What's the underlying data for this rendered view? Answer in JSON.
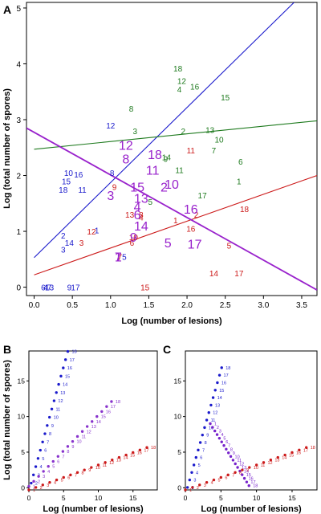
{
  "chart_data": [
    {
      "panel": "A",
      "type": "scatter",
      "xlabel": "Log (number of lesions)",
      "ylabel": "Log (total number of spores)",
      "xlim": [
        -0.1,
        3.7
      ],
      "ylim": [
        -0.15,
        5.1
      ],
      "xticks": [
        "0.0",
        "0.5",
        "1.0",
        "1.5",
        "2.0",
        "2.5",
        "3.0",
        "3.5"
      ],
      "yticks": [
        "0",
        "1",
        "2",
        "3",
        "4",
        "5"
      ],
      "series": [
        {
          "color": "#1a1acc",
          "labels": [
            "1",
            "2",
            "3",
            "4",
            "5",
            "6",
            "7",
            "8",
            "9",
            "10",
            "11",
            "12",
            "13",
            "14",
            "15",
            "16",
            "17",
            "18"
          ],
          "points": [
            [
              0.82,
              1.02
            ],
            [
              0.38,
              0.93
            ],
            [
              0.38,
              0.68
            ],
            [
              0.15,
              0.0
            ],
            [
              1.18,
              0.55
            ],
            [
              0.12,
              0.0
            ],
            [
              0.2,
              0.0
            ],
            [
              1.02,
              2.05
            ],
            [
              0.46,
              0.0
            ],
            [
              0.45,
              2.05
            ],
            [
              0.63,
              1.75
            ],
            [
              1.0,
              2.9
            ],
            [
              0.2,
              0.0
            ],
            [
              0.46,
              0.8
            ],
            [
              0.42,
              1.9
            ],
            [
              0.58,
              2.02
            ],
            [
              0.54,
              0.0
            ],
            [
              0.38,
              1.75
            ]
          ],
          "fit": [
            [
              0.0,
              0.53
            ],
            [
              3.4,
              5.1
            ]
          ]
        },
        {
          "color": "#1e7a1e",
          "labels": [
            "1",
            "2",
            "3",
            "4",
            "5",
            "6",
            "7",
            "8",
            "9",
            "10",
            "11",
            "12",
            "13",
            "14",
            "15",
            "16",
            "17",
            "18"
          ],
          "points": [
            [
              2.68,
              1.9
            ],
            [
              1.95,
              2.8
            ],
            [
              1.32,
              2.8
            ],
            [
              1.9,
              3.55
            ],
            [
              1.52,
              1.53
            ],
            [
              2.7,
              2.25
            ],
            [
              2.35,
              2.45
            ],
            [
              1.27,
              3.2
            ],
            [
              1.72,
              2.3
            ],
            [
              2.42,
              2.65
            ],
            [
              1.9,
              2.1
            ],
            [
              1.93,
              3.7
            ],
            [
              2.3,
              2.82
            ],
            [
              1.73,
              2.33
            ],
            [
              2.5,
              3.4
            ],
            [
              2.1,
              3.6
            ],
            [
              2.2,
              1.65
            ],
            [
              1.88,
              3.92
            ]
          ],
          "fit": [
            [
              0.0,
              2.47
            ],
            [
              3.7,
              2.98
            ]
          ]
        },
        {
          "color": "#cc1a1a",
          "labels": [
            "1",
            "2",
            "3",
            "4",
            "5",
            "6",
            "7",
            "8",
            "9",
            "10",
            "11",
            "12",
            "13",
            "14",
            "15",
            "16",
            "17",
            "18"
          ],
          "points": [
            [
              1.85,
              1.2
            ],
            [
              2.12,
              1.3
            ],
            [
              0.62,
              0.8
            ],
            [
              1.4,
              1.25
            ],
            [
              2.55,
              0.75
            ],
            [
              1.28,
              0.8
            ],
            [
              1.12,
              0.55
            ],
            [
              1.4,
              1.3
            ],
            [
              1.05,
              1.8
            ],
            [
              1.3,
              0.9
            ],
            [
              2.05,
              2.45
            ],
            [
              0.75,
              1.0
            ],
            [
              1.25,
              1.3
            ],
            [
              2.35,
              0.25
            ],
            [
              1.45,
              0.0
            ],
            [
              2.05,
              1.05
            ],
            [
              2.68,
              0.25
            ],
            [
              2.75,
              1.4
            ]
          ],
          "fit": [
            [
              0.0,
              0.22
            ],
            [
              3.7,
              2.0
            ]
          ]
        },
        {
          "color": "#9922cc",
          "labels": [
            "1",
            "2",
            "3",
            "4",
            "5",
            "6",
            "7",
            "8",
            "9",
            "10",
            "11",
            "12",
            "13",
            "14",
            "15",
            "16",
            "17",
            "18"
          ],
          "points": [
            [
              1.1,
              0.55
            ],
            [
              1.7,
              1.8
            ],
            [
              1.0,
              1.65
            ],
            [
              1.35,
              1.45
            ],
            [
              1.75,
              0.8
            ],
            [
              1.35,
              1.3
            ],
            [
              1.1,
              0.55
            ],
            [
              1.2,
              2.3
            ],
            [
              1.3,
              0.9
            ],
            [
              1.8,
              1.85
            ],
            [
              1.55,
              2.1
            ],
            [
              1.2,
              2.55
            ],
            [
              1.4,
              1.6
            ],
            [
              1.4,
              1.1
            ],
            [
              1.35,
              1.8
            ],
            [
              2.05,
              1.4
            ],
            [
              2.1,
              0.78
            ],
            [
              1.58,
              2.38
            ]
          ],
          "fit": [
            [
              -0.1,
              2.85
            ],
            [
              3.7,
              -0.05
            ]
          ]
        }
      ]
    },
    {
      "panel": "B",
      "type": "scatter",
      "xlabel": "Log (number of lesions)",
      "ylabel": "Log (total number of spores)",
      "xlim": [
        0,
        18.5
      ],
      "ylim": [
        -0.3,
        19.2
      ],
      "xticks": [
        "0",
        "5",
        "10",
        "15"
      ],
      "yticks": [
        "0",
        "5",
        "10",
        "15"
      ],
      "series": [
        {
          "color": "#1a1acc",
          "slope": 3.5,
          "intercept": -0.5,
          "xstep": 0.33
        },
        {
          "color": "#8833cc",
          "slope": 1.0,
          "intercept": 0.2,
          "xstep": 0.7
        },
        {
          "color": "#cc1a1a",
          "slope": 0.35,
          "intercept": -0.3,
          "xstep": 1.0
        }
      ]
    },
    {
      "panel": "C",
      "type": "scatter",
      "xlabel": "Log (number of lesions)",
      "ylabel": "",
      "xlim": [
        0,
        18.5
      ],
      "ylim": [
        -0.3,
        19.2
      ],
      "xticks": [
        "0",
        "5",
        "10",
        "15"
      ],
      "yticks": [
        "0",
        "5",
        "10",
        "15"
      ],
      "series": [
        {
          "color": "#1a1acc",
          "slope": 3.5,
          "intercept": -1.0,
          "xstep": 0.3
        },
        {
          "color": "#7722cc",
          "slope": -1.6,
          "intercept": 14.6,
          "xstart": 3.5,
          "xstep": 0.32
        },
        {
          "color": "#cc1a1a",
          "slope": 0.35,
          "intercept": -0.3,
          "xstep": 1.0
        }
      ]
    }
  ]
}
